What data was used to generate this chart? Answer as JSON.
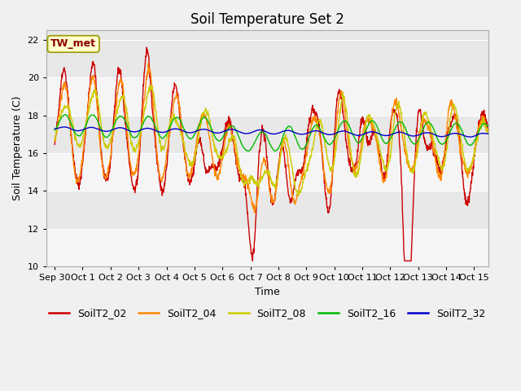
{
  "title": "Soil Temperature Set 2",
  "xlabel": "Time",
  "ylabel": "Soil Temperature (C)",
  "ylim": [
    10,
    22.5
  ],
  "xlim": [
    -0.3,
    15.5
  ],
  "annotation": "TW_met",
  "series_labels": [
    "SoilT2_02",
    "SoilT2_04",
    "SoilT2_08",
    "SoilT2_16",
    "SoilT2_32"
  ],
  "series_colors": [
    "#cc0000",
    "#ff8800",
    "#cccc00",
    "#00bb00",
    "#0000cc"
  ],
  "xtick_positions": [
    0,
    1,
    2,
    3,
    4,
    5,
    6,
    7,
    8,
    9,
    10,
    11,
    12,
    13,
    14,
    15
  ],
  "xtick_labels": [
    "Sep 30",
    "Oct 1",
    "Oct 2",
    "Oct 3",
    "Oct 4",
    "Oct 5",
    "Oct 6",
    "Oct 7",
    "Oct 8",
    "Oct 9",
    "Oct 10",
    "Oct 11",
    "Oct 12",
    "Oct 13",
    "Oct 14",
    "Oct 15"
  ],
  "ytick_positions": [
    10,
    12,
    14,
    16,
    18,
    20,
    22
  ],
  "background_color": "#e8e8e8",
  "band_color_light": "#f5f5f5",
  "grid_color": "#ffffff",
  "title_fontsize": 12,
  "axis_label_fontsize": 9,
  "tick_fontsize": 8,
  "legend_fontsize": 9,
  "fig_width": 6.4,
  "fig_height": 4.8,
  "dpi": 100
}
